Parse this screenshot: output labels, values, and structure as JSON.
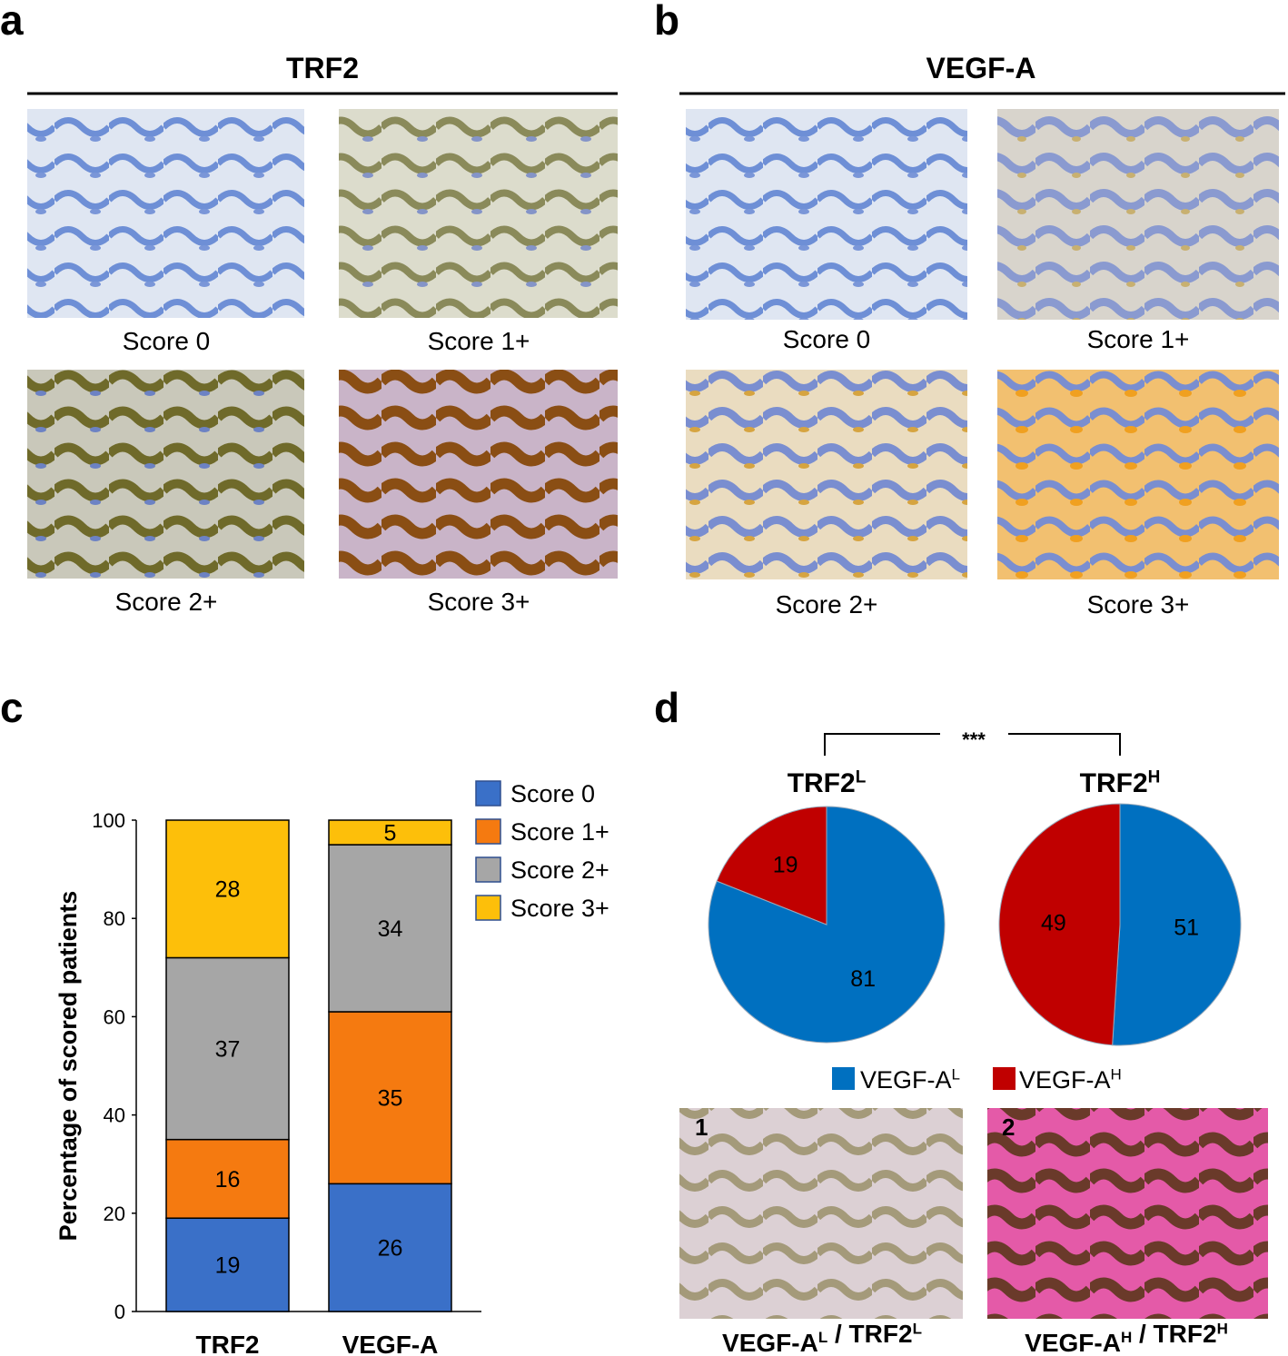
{
  "panel_labels": [
    "a",
    "b",
    "c",
    "d"
  ],
  "ihc": [
    {
      "title": "TRF2",
      "captions": [
        "Score 0",
        "Score 1+",
        "Score 2+",
        "Score 3+"
      ]
    },
    {
      "title": "VEGF-A",
      "captions": [
        "Score 0",
        "Score 1+",
        "Score 2+",
        "Score 3+"
      ]
    }
  ],
  "chart_data": [
    {
      "type": "bar",
      "stacked": true,
      "categories": [
        "TRF2",
        "VEGF-A"
      ],
      "ylabel": "Percentage of scored patients",
      "ylim": [
        0,
        100
      ],
      "yticks": [
        0,
        20,
        40,
        60,
        80,
        100
      ],
      "grid": false,
      "series": [
        {
          "name": "Score 0",
          "color": "#3a70c8",
          "values": [
            19,
            26
          ]
        },
        {
          "name": "Score 1+",
          "color": "#f57a10",
          "values": [
            16,
            35
          ]
        },
        {
          "name": "Score 2+",
          "color": "#a6a6a6",
          "values": [
            37,
            34
          ]
        },
        {
          "name": "Score 3+",
          "color": "#fdbf0a",
          "values": [
            28,
            5
          ]
        }
      ]
    },
    {
      "type": "pie",
      "categories": [
        {
          "text": "VEGF-A",
          "sup": "L"
        },
        {
          "text": "VEGF-A",
          "sup": "H"
        }
      ],
      "colors": [
        "#0070c0",
        "#c00000"
      ],
      "significance": "***",
      "groups": [
        {
          "title": {
            "text": "TRF2",
            "sup": "L"
          },
          "values": [
            81,
            19
          ]
        },
        {
          "title": {
            "text": "TRF2",
            "sup": "H"
          },
          "values": [
            51,
            49
          ]
        }
      ]
    }
  ],
  "examples": [
    {
      "number": "1",
      "caption": [
        {
          "text": "VEGF-A",
          "sup": "L"
        },
        {
          "text": " / TRF2",
          "sup": "L"
        }
      ]
    },
    {
      "number": "2",
      "caption": [
        {
          "text": "VEGF-A",
          "sup": "H"
        },
        {
          "text": " / TRF2",
          "sup": "H"
        }
      ]
    }
  ]
}
